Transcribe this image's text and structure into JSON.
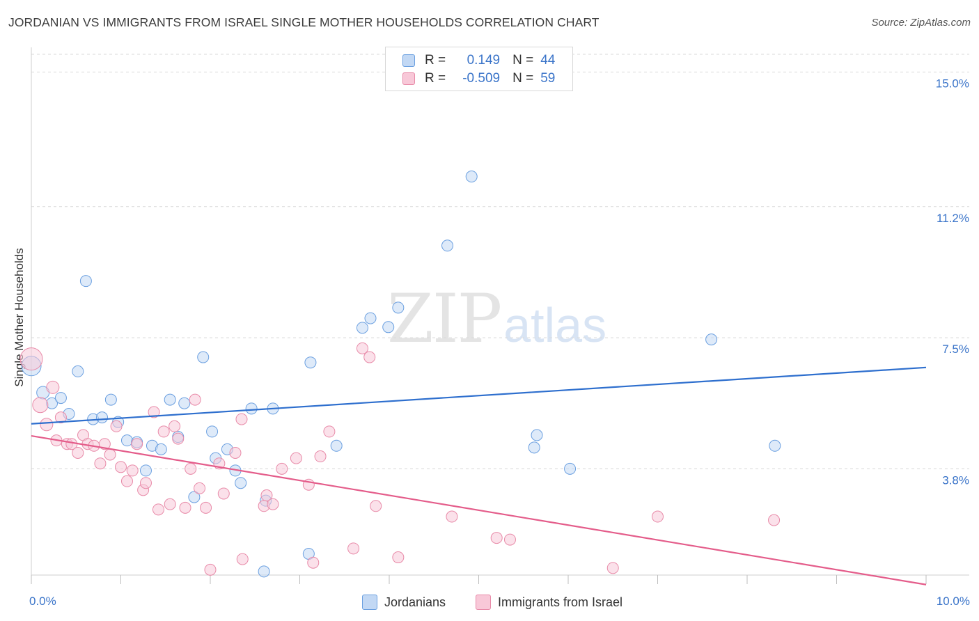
{
  "title": "JORDANIAN VS IMMIGRANTS FROM ISRAEL SINGLE MOTHER HOUSEHOLDS CORRELATION CHART",
  "source": "Source: ZipAtlas.com",
  "watermark": {
    "part1": "ZIP",
    "part2": "atlas"
  },
  "legend": {
    "rows": [
      {
        "r_label": "R =",
        "r_value": "0.149",
        "n_label": "N =",
        "n_value": "44",
        "color": "#a8c8f0"
      },
      {
        "r_label": "R =",
        "r_value": "-0.509",
        "n_label": "N =",
        "n_value": "59",
        "color": "#f5b8cc"
      }
    ]
  },
  "chart_data": {
    "type": "scatter",
    "title": "JORDANIAN VS IMMIGRANTS FROM ISRAEL SINGLE MOTHER HOUSEHOLDS CORRELATION CHART",
    "xlabel": "",
    "ylabel": "Single Mother Households",
    "xlim": [
      0,
      10
    ],
    "ylim": [
      0.8,
      15.5
    ],
    "x_ticks": [
      "0.0%",
      "10.0%"
    ],
    "y_ticks": [
      {
        "value": 3.8,
        "label": "3.8%"
      },
      {
        "value": 7.5,
        "label": "7.5%"
      },
      {
        "value": 11.2,
        "label": "11.2%"
      },
      {
        "value": 15.0,
        "label": "15.0%"
      }
    ],
    "grid": "horizontal dashed",
    "legend_position": "top-center",
    "series": [
      {
        "name": "Jordanians",
        "color": "#6a9fe0",
        "fill": "#c2d8f4",
        "trend": {
          "x": [
            0,
            10
          ],
          "y": [
            5.07,
            6.66
          ]
        },
        "points": [
          [
            0.0,
            6.7,
            14
          ],
          [
            0.13,
            5.95,
            9
          ],
          [
            0.23,
            5.65,
            8
          ],
          [
            0.33,
            5.8,
            8
          ],
          [
            0.42,
            5.35,
            8
          ],
          [
            0.52,
            6.55,
            8
          ],
          [
            0.61,
            9.1,
            8
          ],
          [
            0.69,
            5.2,
            8
          ],
          [
            0.79,
            5.25,
            8
          ],
          [
            0.89,
            5.75,
            8
          ],
          [
            0.97,
            5.12,
            8
          ],
          [
            1.07,
            4.6,
            8
          ],
          [
            1.18,
            4.55,
            8
          ],
          [
            1.28,
            3.75,
            8
          ],
          [
            1.35,
            4.45,
            8
          ],
          [
            1.45,
            4.35,
            8
          ],
          [
            1.55,
            5.75,
            8
          ],
          [
            1.64,
            4.7,
            8
          ],
          [
            1.71,
            5.65,
            8
          ],
          [
            1.82,
            3.0,
            8
          ],
          [
            1.92,
            6.95,
            8
          ],
          [
            2.02,
            4.85,
            8
          ],
          [
            2.06,
            4.1,
            8
          ],
          [
            2.19,
            4.35,
            8
          ],
          [
            2.28,
            3.75,
            8
          ],
          [
            2.34,
            3.4,
            8
          ],
          [
            2.46,
            5.5,
            8
          ],
          [
            2.6,
            0.9,
            8
          ],
          [
            2.62,
            2.9,
            8
          ],
          [
            2.7,
            5.5,
            8
          ],
          [
            3.1,
            1.4,
            8
          ],
          [
            3.12,
            6.8,
            8
          ],
          [
            3.41,
            4.45,
            8
          ],
          [
            3.7,
            7.78,
            8
          ],
          [
            3.79,
            8.05,
            8
          ],
          [
            3.99,
            7.8,
            8
          ],
          [
            4.1,
            8.35,
            8
          ],
          [
            4.65,
            10.1,
            8
          ],
          [
            4.92,
            12.05,
            8
          ],
          [
            5.62,
            4.4,
            8
          ],
          [
            5.65,
            4.75,
            8
          ],
          [
            6.02,
            3.8,
            8
          ],
          [
            7.6,
            7.45,
            8
          ],
          [
            8.31,
            4.45,
            8
          ]
        ]
      },
      {
        "name": "Immigrants from Israel",
        "color": "#e88aa8",
        "fill": "#f8c8d8",
        "trend": {
          "x": [
            0,
            10
          ],
          "y": [
            4.73,
            0.53
          ]
        },
        "points": [
          [
            0.0,
            6.9,
            16
          ],
          [
            0.1,
            5.6,
            11
          ],
          [
            0.17,
            5.05,
            9
          ],
          [
            0.24,
            6.1,
            9
          ],
          [
            0.28,
            4.6,
            8
          ],
          [
            0.33,
            5.25,
            8
          ],
          [
            0.4,
            4.5,
            8
          ],
          [
            0.45,
            4.5,
            8
          ],
          [
            0.52,
            4.25,
            8
          ],
          [
            0.58,
            4.75,
            8
          ],
          [
            0.63,
            4.5,
            8
          ],
          [
            0.7,
            4.45,
            8
          ],
          [
            0.77,
            3.95,
            8
          ],
          [
            0.82,
            4.5,
            8
          ],
          [
            0.88,
            4.2,
            8
          ],
          [
            0.95,
            5.0,
            8
          ],
          [
            1.0,
            3.85,
            8
          ],
          [
            1.07,
            3.45,
            8
          ],
          [
            1.13,
            3.75,
            8
          ],
          [
            1.18,
            4.5,
            8
          ],
          [
            1.25,
            3.2,
            8
          ],
          [
            1.28,
            3.4,
            8
          ],
          [
            1.37,
            5.4,
            8
          ],
          [
            1.42,
            2.65,
            8
          ],
          [
            1.48,
            4.85,
            8
          ],
          [
            1.55,
            2.8,
            8
          ],
          [
            1.6,
            5.0,
            8
          ],
          [
            1.64,
            4.65,
            8
          ],
          [
            1.72,
            2.7,
            8
          ],
          [
            1.78,
            3.8,
            8
          ],
          [
            1.83,
            5.75,
            8
          ],
          [
            1.88,
            3.25,
            8
          ],
          [
            1.95,
            2.7,
            8
          ],
          [
            2.0,
            0.95,
            8
          ],
          [
            2.1,
            3.95,
            8
          ],
          [
            2.15,
            3.1,
            8
          ],
          [
            2.28,
            4.25,
            8
          ],
          [
            2.35,
            5.2,
            8
          ],
          [
            2.36,
            1.25,
            8
          ],
          [
            2.6,
            2.75,
            8
          ],
          [
            2.63,
            3.05,
            8
          ],
          [
            2.7,
            2.8,
            8
          ],
          [
            2.8,
            3.8,
            8
          ],
          [
            2.96,
            4.1,
            8
          ],
          [
            3.1,
            3.35,
            8
          ],
          [
            3.15,
            1.15,
            8
          ],
          [
            3.23,
            4.15,
            8
          ],
          [
            3.33,
            4.85,
            8
          ],
          [
            3.6,
            1.55,
            8
          ],
          [
            3.7,
            7.2,
            8
          ],
          [
            3.78,
            6.95,
            8
          ],
          [
            3.85,
            2.75,
            8
          ],
          [
            4.1,
            1.3,
            8
          ],
          [
            4.7,
            2.45,
            8
          ],
          [
            5.2,
            1.85,
            8
          ],
          [
            5.35,
            1.8,
            8
          ],
          [
            6.5,
            1.0,
            8
          ],
          [
            7.0,
            2.45,
            8
          ],
          [
            8.3,
            2.35,
            8
          ]
        ]
      }
    ]
  }
}
